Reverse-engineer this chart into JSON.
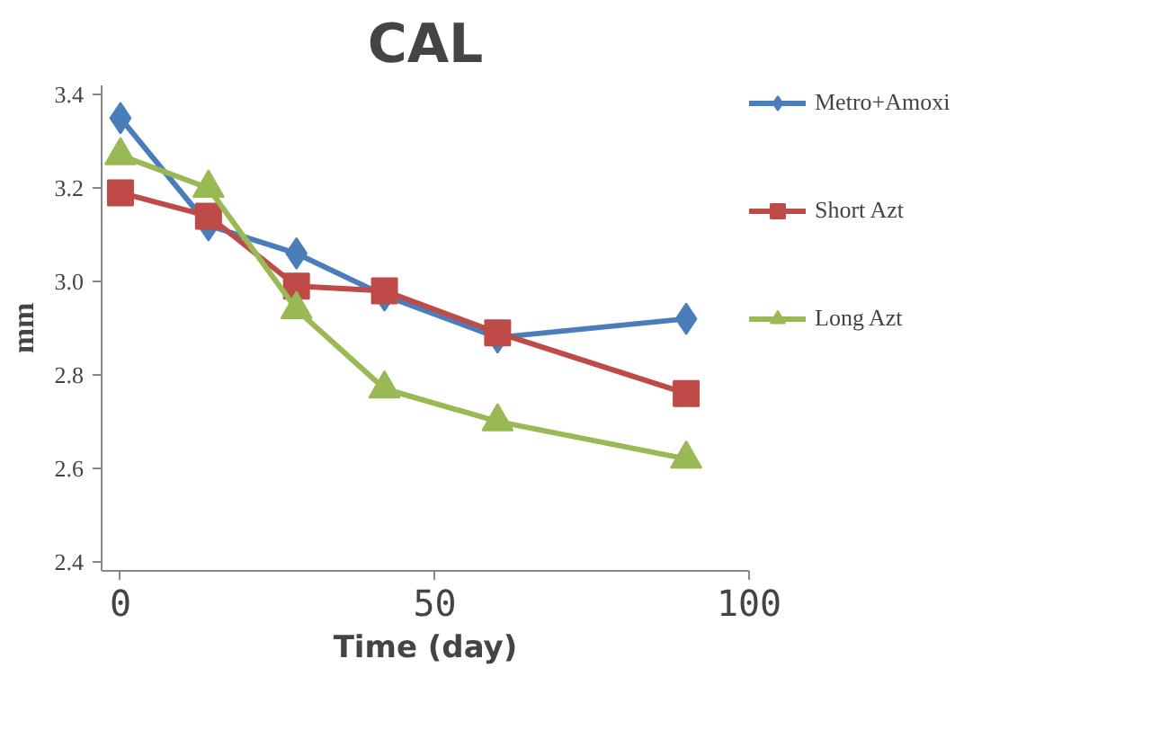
{
  "chart_data": {
    "type": "line",
    "title": "CAL",
    "xlabel": "Time (day)",
    "ylabel": "mm",
    "x": [
      0,
      14,
      28,
      42,
      60,
      90
    ],
    "series": [
      {
        "name": "Metro+Amoxi",
        "color": "#4a7ebb",
        "marker": "diamond",
        "values": [
          3.35,
          3.12,
          3.06,
          2.97,
          2.88,
          2.92
        ]
      },
      {
        "name": "Short Azt",
        "color": "#be4b48",
        "marker": "square",
        "values": [
          3.19,
          3.14,
          2.99,
          2.98,
          2.89,
          2.76
        ]
      },
      {
        "name": "Long Azt",
        "color": "#98b954",
        "marker": "triangle",
        "values": [
          3.27,
          3.2,
          2.94,
          2.77,
          2.7,
          2.62
        ]
      }
    ],
    "xlim": [
      -3,
      100
    ],
    "xticks": [
      0,
      50,
      100
    ],
    "ylim": [
      2.38,
      3.42
    ],
    "yticks": [
      2.4,
      2.6,
      2.8,
      {
        "value": 3,
        "label": "3.0"
      },
      3.2,
      3.4
    ],
    "grid": false,
    "legend": "right",
    "line_style": "solid"
  }
}
